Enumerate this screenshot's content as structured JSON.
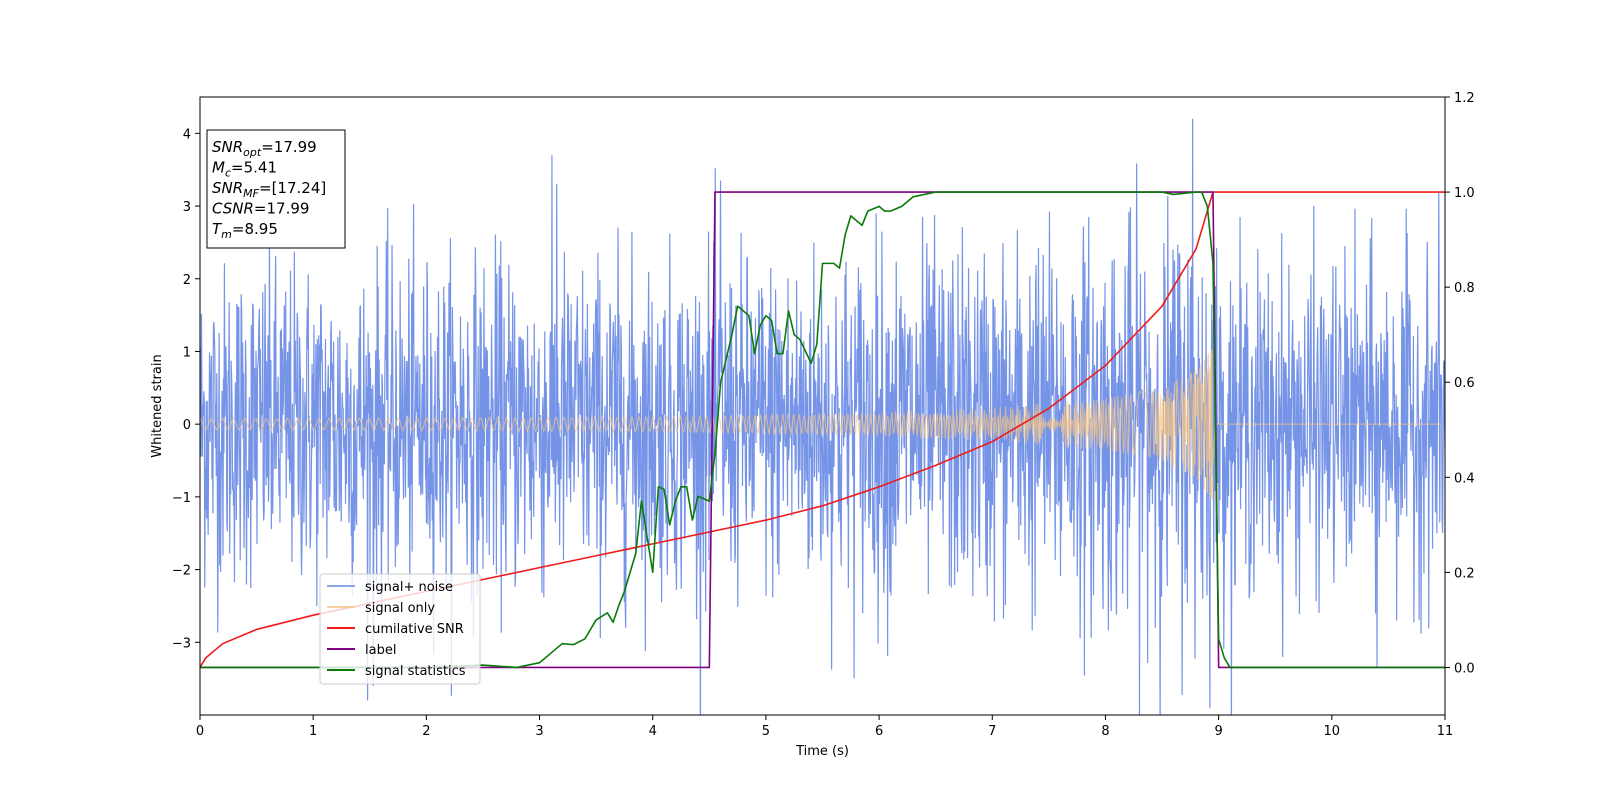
{
  "chart_data": {
    "type": "line",
    "xlabel": "Time (s)",
    "ylabel": "Whitened strain",
    "xlim": [
      0,
      11
    ],
    "ylim": [
      -4,
      4.5
    ],
    "y2lim": [
      -0.1,
      1.2
    ],
    "x_ticks": [
      "0",
      "1",
      "2",
      "3",
      "4",
      "5",
      "6",
      "7",
      "8",
      "9",
      "10",
      "11"
    ],
    "y_ticks": [
      "4",
      "3",
      "2",
      "1",
      "0",
      "−1",
      "−2",
      "−3"
    ],
    "y_tick_values": [
      4,
      3,
      2,
      1,
      0,
      -1,
      -2,
      -3
    ],
    "y2_ticks": [
      "1.2",
      "1.0",
      "0.8",
      "0.6",
      "0.4",
      "0.2",
      "0.0"
    ],
    "y2_tick_values": [
      1.2,
      1.0,
      0.8,
      0.6,
      0.4,
      0.2,
      0.0
    ],
    "grid": false,
    "legend_placement": "lower-left",
    "info_box": {
      "lines": [
        {
          "base": "SNR",
          "sub": "opt",
          "value": "=17.99"
        },
        {
          "base": "M",
          "sub": "c",
          "value": "=5.41"
        },
        {
          "base": "SNR",
          "sub": "MF",
          "value": "=[17.24]"
        },
        {
          "base": "CSNR",
          "sub": "",
          "value": "=17.99"
        },
        {
          "base": "T",
          "sub": "m",
          "value": "=8.95"
        }
      ]
    },
    "series": [
      {
        "name": "signal+ noise",
        "color": "#6f8ee6",
        "axis": "left",
        "kind": "noise",
        "envelope_x": [
          0,
          1,
          2,
          3,
          4,
          5,
          6,
          7,
          8,
          8.5,
          8.9,
          9,
          11
        ],
        "envelope_y": [
          2.6,
          2.6,
          2.6,
          2.7,
          2.6,
          2.7,
          2.9,
          2.9,
          3.2,
          3.3,
          3.5,
          2.6,
          2.6
        ],
        "noted_peaks": [
          {
            "x": 1.53,
            "y": -3.6
          },
          {
            "x": 3.15,
            "y": 3.3
          },
          {
            "x": 4.6,
            "y": 3.35
          },
          {
            "x": 8.77,
            "y": 4.2
          },
          {
            "x": 10.4,
            "y": -3.35
          }
        ]
      },
      {
        "name": "signal only",
        "color": "#f5c687",
        "axis": "left",
        "kind": "chirp",
        "envelope_x": [
          0,
          1,
          2,
          3,
          4,
          5,
          6,
          7,
          8,
          8.5,
          8.8,
          8.9,
          8.95,
          9,
          11
        ],
        "envelope_y": [
          0.08,
          0.08,
          0.09,
          0.1,
          0.11,
          0.14,
          0.17,
          0.23,
          0.36,
          0.5,
          0.75,
          0.95,
          1.05,
          0.0,
          0.0
        ]
      },
      {
        "name": "cumilative SNR",
        "color": "#ee1c1c",
        "axis": "right",
        "x": [
          0,
          0.05,
          0.2,
          0.5,
          1,
          1.5,
          2,
          2.5,
          3,
          3.5,
          4,
          4.5,
          5,
          5.5,
          6,
          6.5,
          7,
          7.5,
          8,
          8.5,
          8.8,
          8.95,
          9,
          11
        ],
        "y": [
          0.0,
          0.02,
          0.05,
          0.08,
          0.11,
          0.135,
          0.16,
          0.185,
          0.21,
          0.235,
          0.26,
          0.285,
          0.31,
          0.34,
          0.38,
          0.425,
          0.475,
          0.545,
          0.635,
          0.76,
          0.88,
          1.0,
          1.0,
          1.0
        ]
      },
      {
        "name": "label",
        "color": "#800080",
        "axis": "right",
        "x": [
          0,
          4.5,
          4.55,
          8.95,
          9.0,
          11
        ],
        "y": [
          0.0,
          0.0,
          1.0,
          1.0,
          0.0,
          0.0
        ]
      },
      {
        "name": "signal statistics",
        "color": "#0a7a0a",
        "axis": "right",
        "x": [
          0,
          2.0,
          2.5,
          2.8,
          3.0,
          3.1,
          3.2,
          3.3,
          3.4,
          3.5,
          3.6,
          3.65,
          3.7,
          3.75,
          3.8,
          3.85,
          3.9,
          4.0,
          4.05,
          4.1,
          4.15,
          4.2,
          4.25,
          4.3,
          4.35,
          4.4,
          4.5,
          4.55,
          4.6,
          4.65,
          4.7,
          4.75,
          4.8,
          4.85,
          4.9,
          4.95,
          5.0,
          5.05,
          5.1,
          5.15,
          5.2,
          5.25,
          5.3,
          5.4,
          5.45,
          5.5,
          5.6,
          5.65,
          5.7,
          5.75,
          5.8,
          5.85,
          5.9,
          6.0,
          6.05,
          6.1,
          6.2,
          6.3,
          6.5,
          6.8,
          7.0,
          7.5,
          8.0,
          8.4,
          8.5,
          8.6,
          8.8,
          8.85,
          8.9,
          8.95,
          9.0,
          9.05,
          9.1,
          11
        ],
        "y": [
          0.0,
          0.0,
          0.005,
          0.0,
          0.01,
          0.03,
          0.05,
          0.048,
          0.06,
          0.1,
          0.115,
          0.095,
          0.13,
          0.16,
          0.2,
          0.24,
          0.35,
          0.2,
          0.38,
          0.375,
          0.3,
          0.35,
          0.38,
          0.38,
          0.31,
          0.36,
          0.35,
          0.45,
          0.6,
          0.65,
          0.7,
          0.76,
          0.75,
          0.74,
          0.66,
          0.72,
          0.74,
          0.73,
          0.66,
          0.66,
          0.75,
          0.7,
          0.69,
          0.64,
          0.68,
          0.85,
          0.85,
          0.84,
          0.91,
          0.95,
          0.94,
          0.93,
          0.96,
          0.97,
          0.96,
          0.96,
          0.97,
          0.99,
          1.0,
          1.0,
          1.0,
          1.0,
          1.0,
          1.0,
          1.0,
          0.995,
          1.0,
          1.0,
          0.97,
          0.85,
          0.06,
          0.02,
          0.0,
          0.0
        ]
      }
    ]
  }
}
